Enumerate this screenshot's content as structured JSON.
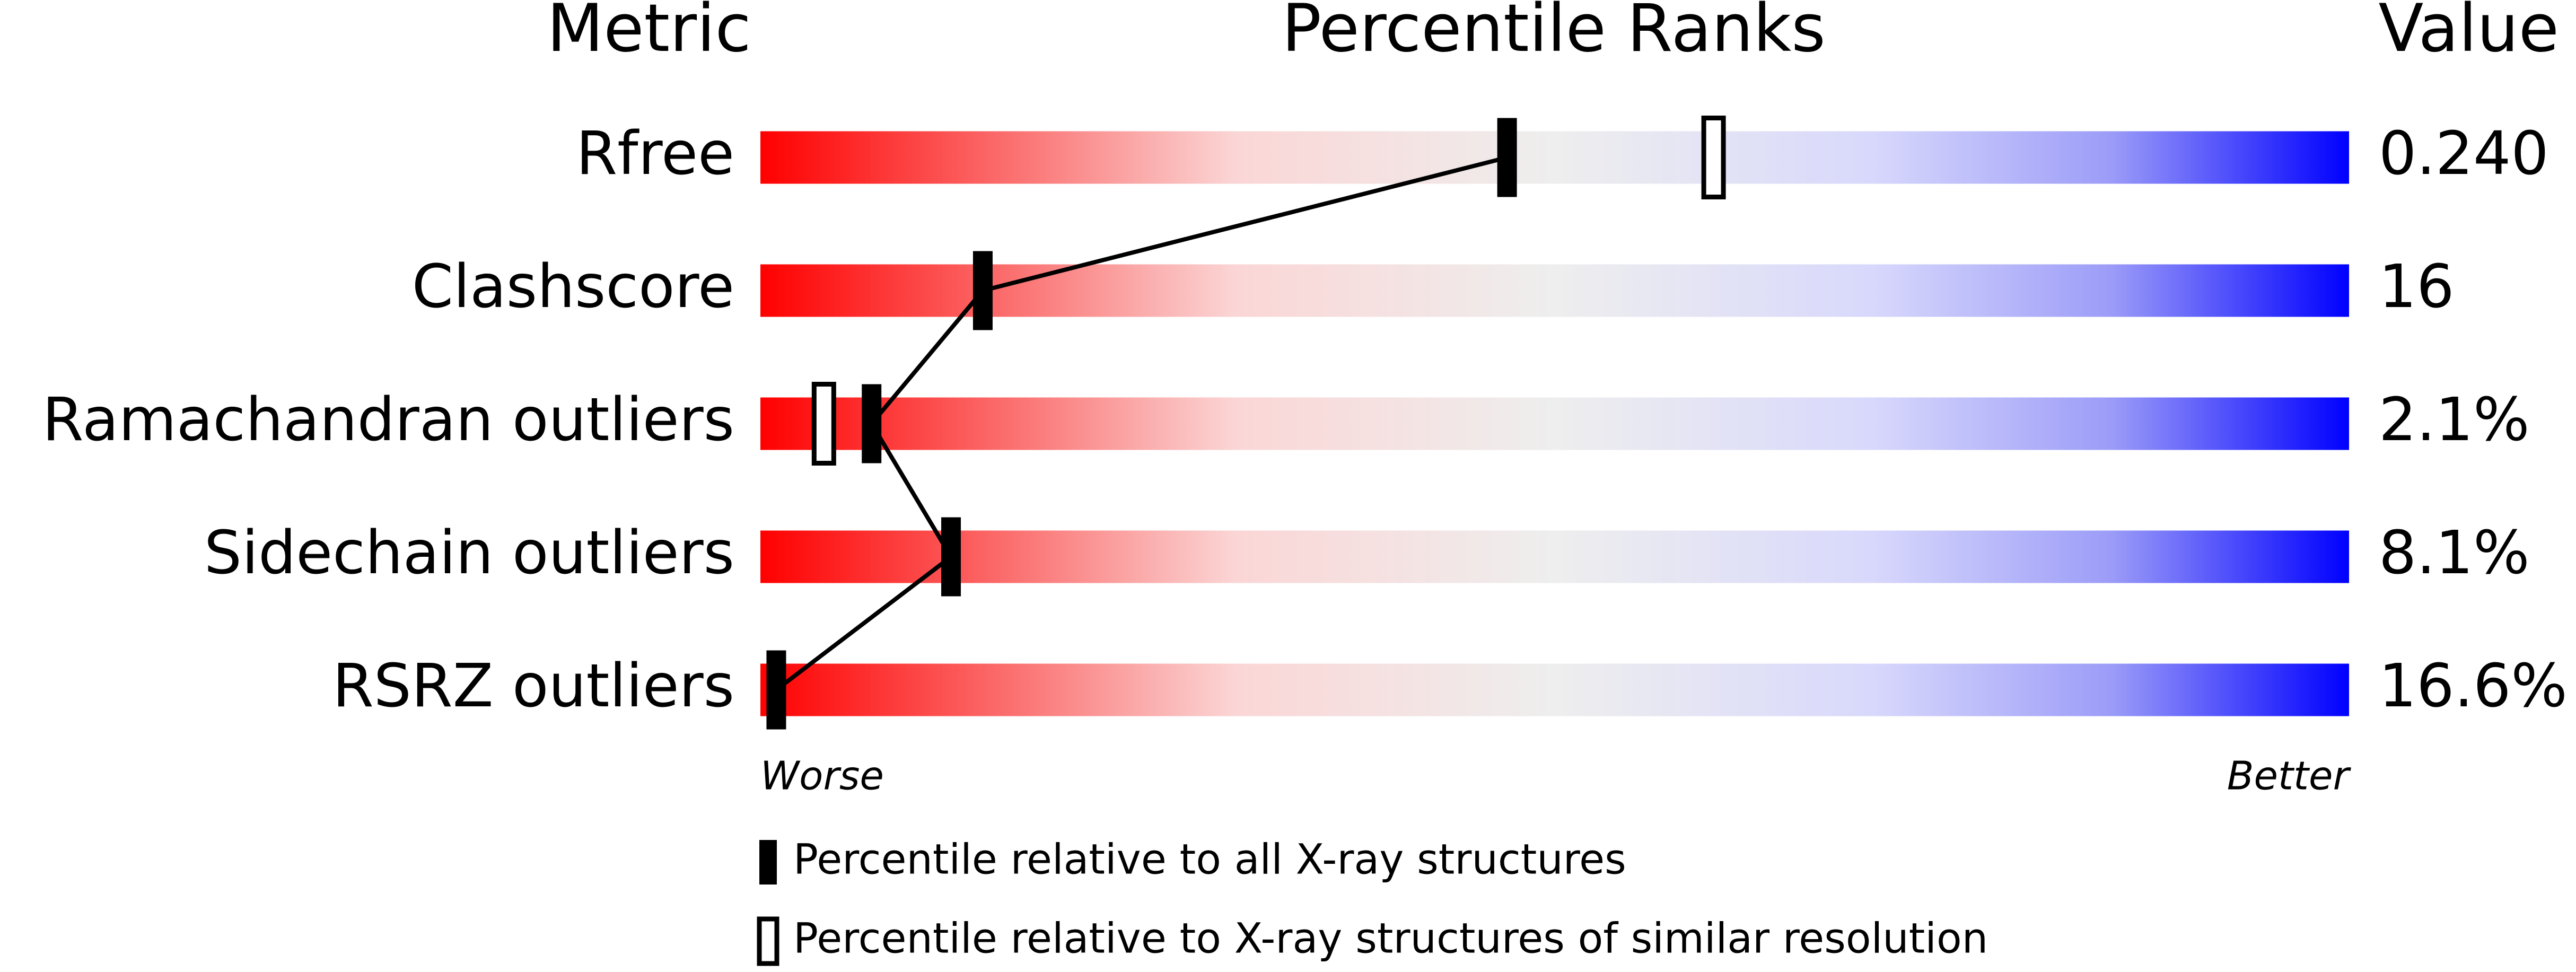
{
  "chart_data": {
    "type": "percentile",
    "title": "Percentile Ranks",
    "metric_header": "Metric",
    "value_header": "Value",
    "categories": [
      "Rfree",
      "Clashscore",
      "Ramachandran outliers",
      "Sidechain outliers",
      "RSRZ outliers"
    ],
    "metric_values": [
      "0.240",
      "16",
      "2.1%",
      "8.1%",
      "16.6%"
    ],
    "series": [
      {
        "name": "Percentile relative to all X-ray structures",
        "color": "#000000",
        "style": "filled",
        "values": [
          47,
          14,
          7,
          12,
          1
        ]
      },
      {
        "name": "Percentile relative to X-ray structures of similar resolution",
        "color": "#000000",
        "style": "open",
        "values": [
          60,
          null,
          4,
          null,
          null
        ]
      }
    ],
    "xlim": [
      0,
      100
    ],
    "low_label": "Worse",
    "high_label": "Better"
  }
}
